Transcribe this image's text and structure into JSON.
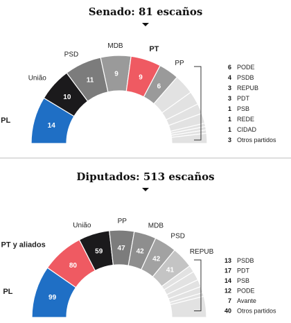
{
  "chart_data": [
    {
      "type": "semicircle",
      "title": "Senado: 81 escaños",
      "seats": [
        {
          "party": "PL",
          "value": 14,
          "color": "#1f6fc5",
          "text_color": "#ffffff",
          "label_bold": true
        },
        {
          "party": "União",
          "value": 10,
          "color": "#1b1a1c",
          "text_color": "#ffffff",
          "label_bold": false
        },
        {
          "party": "PSD",
          "value": 11,
          "color": "#7c7c7c",
          "text_color": "#ffffff",
          "label_bold": false
        },
        {
          "party": "MDB",
          "value": 9,
          "color": "#9a9a9a",
          "text_color": "#ffffff",
          "label_bold": false
        },
        {
          "party": "PT",
          "value": 9,
          "color": "#ef5a62",
          "text_color": "#ffffff",
          "label_bold": true
        },
        {
          "party": "PP",
          "value": 6,
          "color": "#9a9a9a",
          "text_color": "#ffffff",
          "label_bold": false
        }
      ],
      "others": [
        {
          "value": 6,
          "party": "PODE"
        },
        {
          "value": 4,
          "party": "PSDB"
        },
        {
          "value": 3,
          "party": "REPUB"
        },
        {
          "value": 3,
          "party": "PDT"
        },
        {
          "value": 1,
          "party": "PSB"
        },
        {
          "value": 1,
          "party": "REDE"
        },
        {
          "value": 1,
          "party": "CIDAD"
        },
        {
          "value": 3,
          "party": "Otros partidos"
        }
      ]
    },
    {
      "type": "semicircle",
      "title": "Diputados: 513 escaños",
      "seats": [
        {
          "party": "PL",
          "value": 99,
          "color": "#1f6fc5",
          "text_color": "#ffffff",
          "label_bold": true
        },
        {
          "party": "PT y aliados",
          "value": 80,
          "color": "#ef5a62",
          "text_color": "#ffffff",
          "label_bold": true
        },
        {
          "party": "União",
          "value": 59,
          "color": "#1b1a1c",
          "text_color": "#ffffff",
          "label_bold": false
        },
        {
          "party": "PP",
          "value": 47,
          "color": "#7c7c7c",
          "text_color": "#ffffff",
          "label_bold": false
        },
        {
          "party": "MDB",
          "value": 42,
          "color": "#8e8e8e",
          "text_color": "#ffffff",
          "label_bold": false
        },
        {
          "party": "PSD",
          "value": 42,
          "color": "#a2a2a2",
          "text_color": "#ffffff",
          "label_bold": false
        },
        {
          "party": "REPUB",
          "value": 41,
          "color": "#c4c4c4",
          "text_color": "#ffffff",
          "label_bold": false
        }
      ],
      "others": [
        {
          "value": 13,
          "party": "PSDB"
        },
        {
          "value": 17,
          "party": "PDT"
        },
        {
          "value": 14,
          "party": "PSB"
        },
        {
          "value": 12,
          "party": "PODE"
        },
        {
          "value": 7,
          "party": "Avante"
        },
        {
          "value": 40,
          "party": "Otros partidos"
        }
      ]
    }
  ],
  "colors": {
    "others_segment": "#e2e2e2",
    "others_divider": "#ffffff",
    "separator": "#bdbdbd",
    "bracket": "#333333"
  }
}
